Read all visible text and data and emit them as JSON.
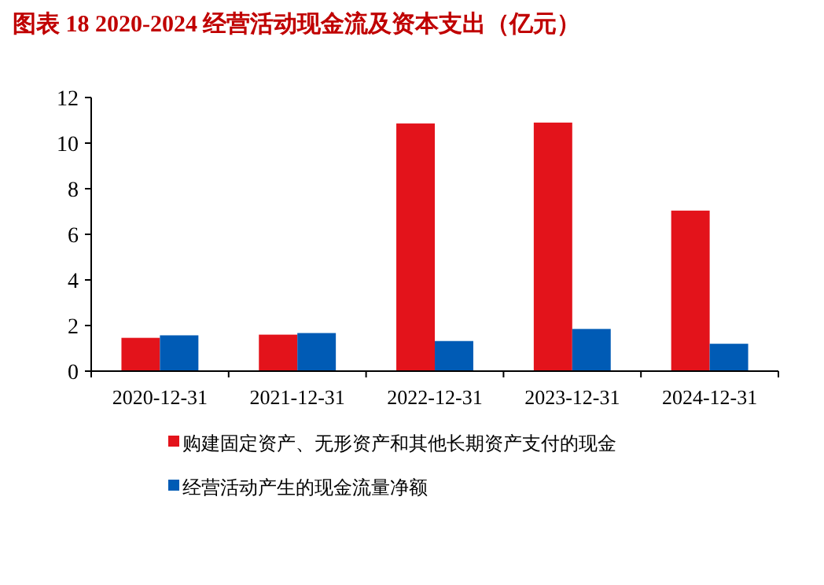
{
  "chart_data": {
    "type": "bar",
    "title": "图表 18  2020-2024 经营活动现金流及资本支出（亿元）",
    "categories": [
      "2020-12-31",
      "2021-12-31",
      "2022-12-31",
      "2023-12-31",
      "2024-12-31"
    ],
    "series": [
      {
        "name": "购建固定资产、无形资产和其他长期资产支付的现金",
        "color": "#e3131b",
        "values": [
          1.46,
          1.6,
          10.86,
          10.9,
          7.04
        ]
      },
      {
        "name": "经营活动产生的现金流量净额",
        "color": "#005bb5",
        "values": [
          1.57,
          1.67,
          1.32,
          1.85,
          1.2
        ]
      }
    ],
    "ylim": [
      0,
      12
    ],
    "yticks": [
      0,
      2,
      4,
      6,
      8,
      10,
      12
    ],
    "grid": false,
    "legend": "bottom"
  }
}
